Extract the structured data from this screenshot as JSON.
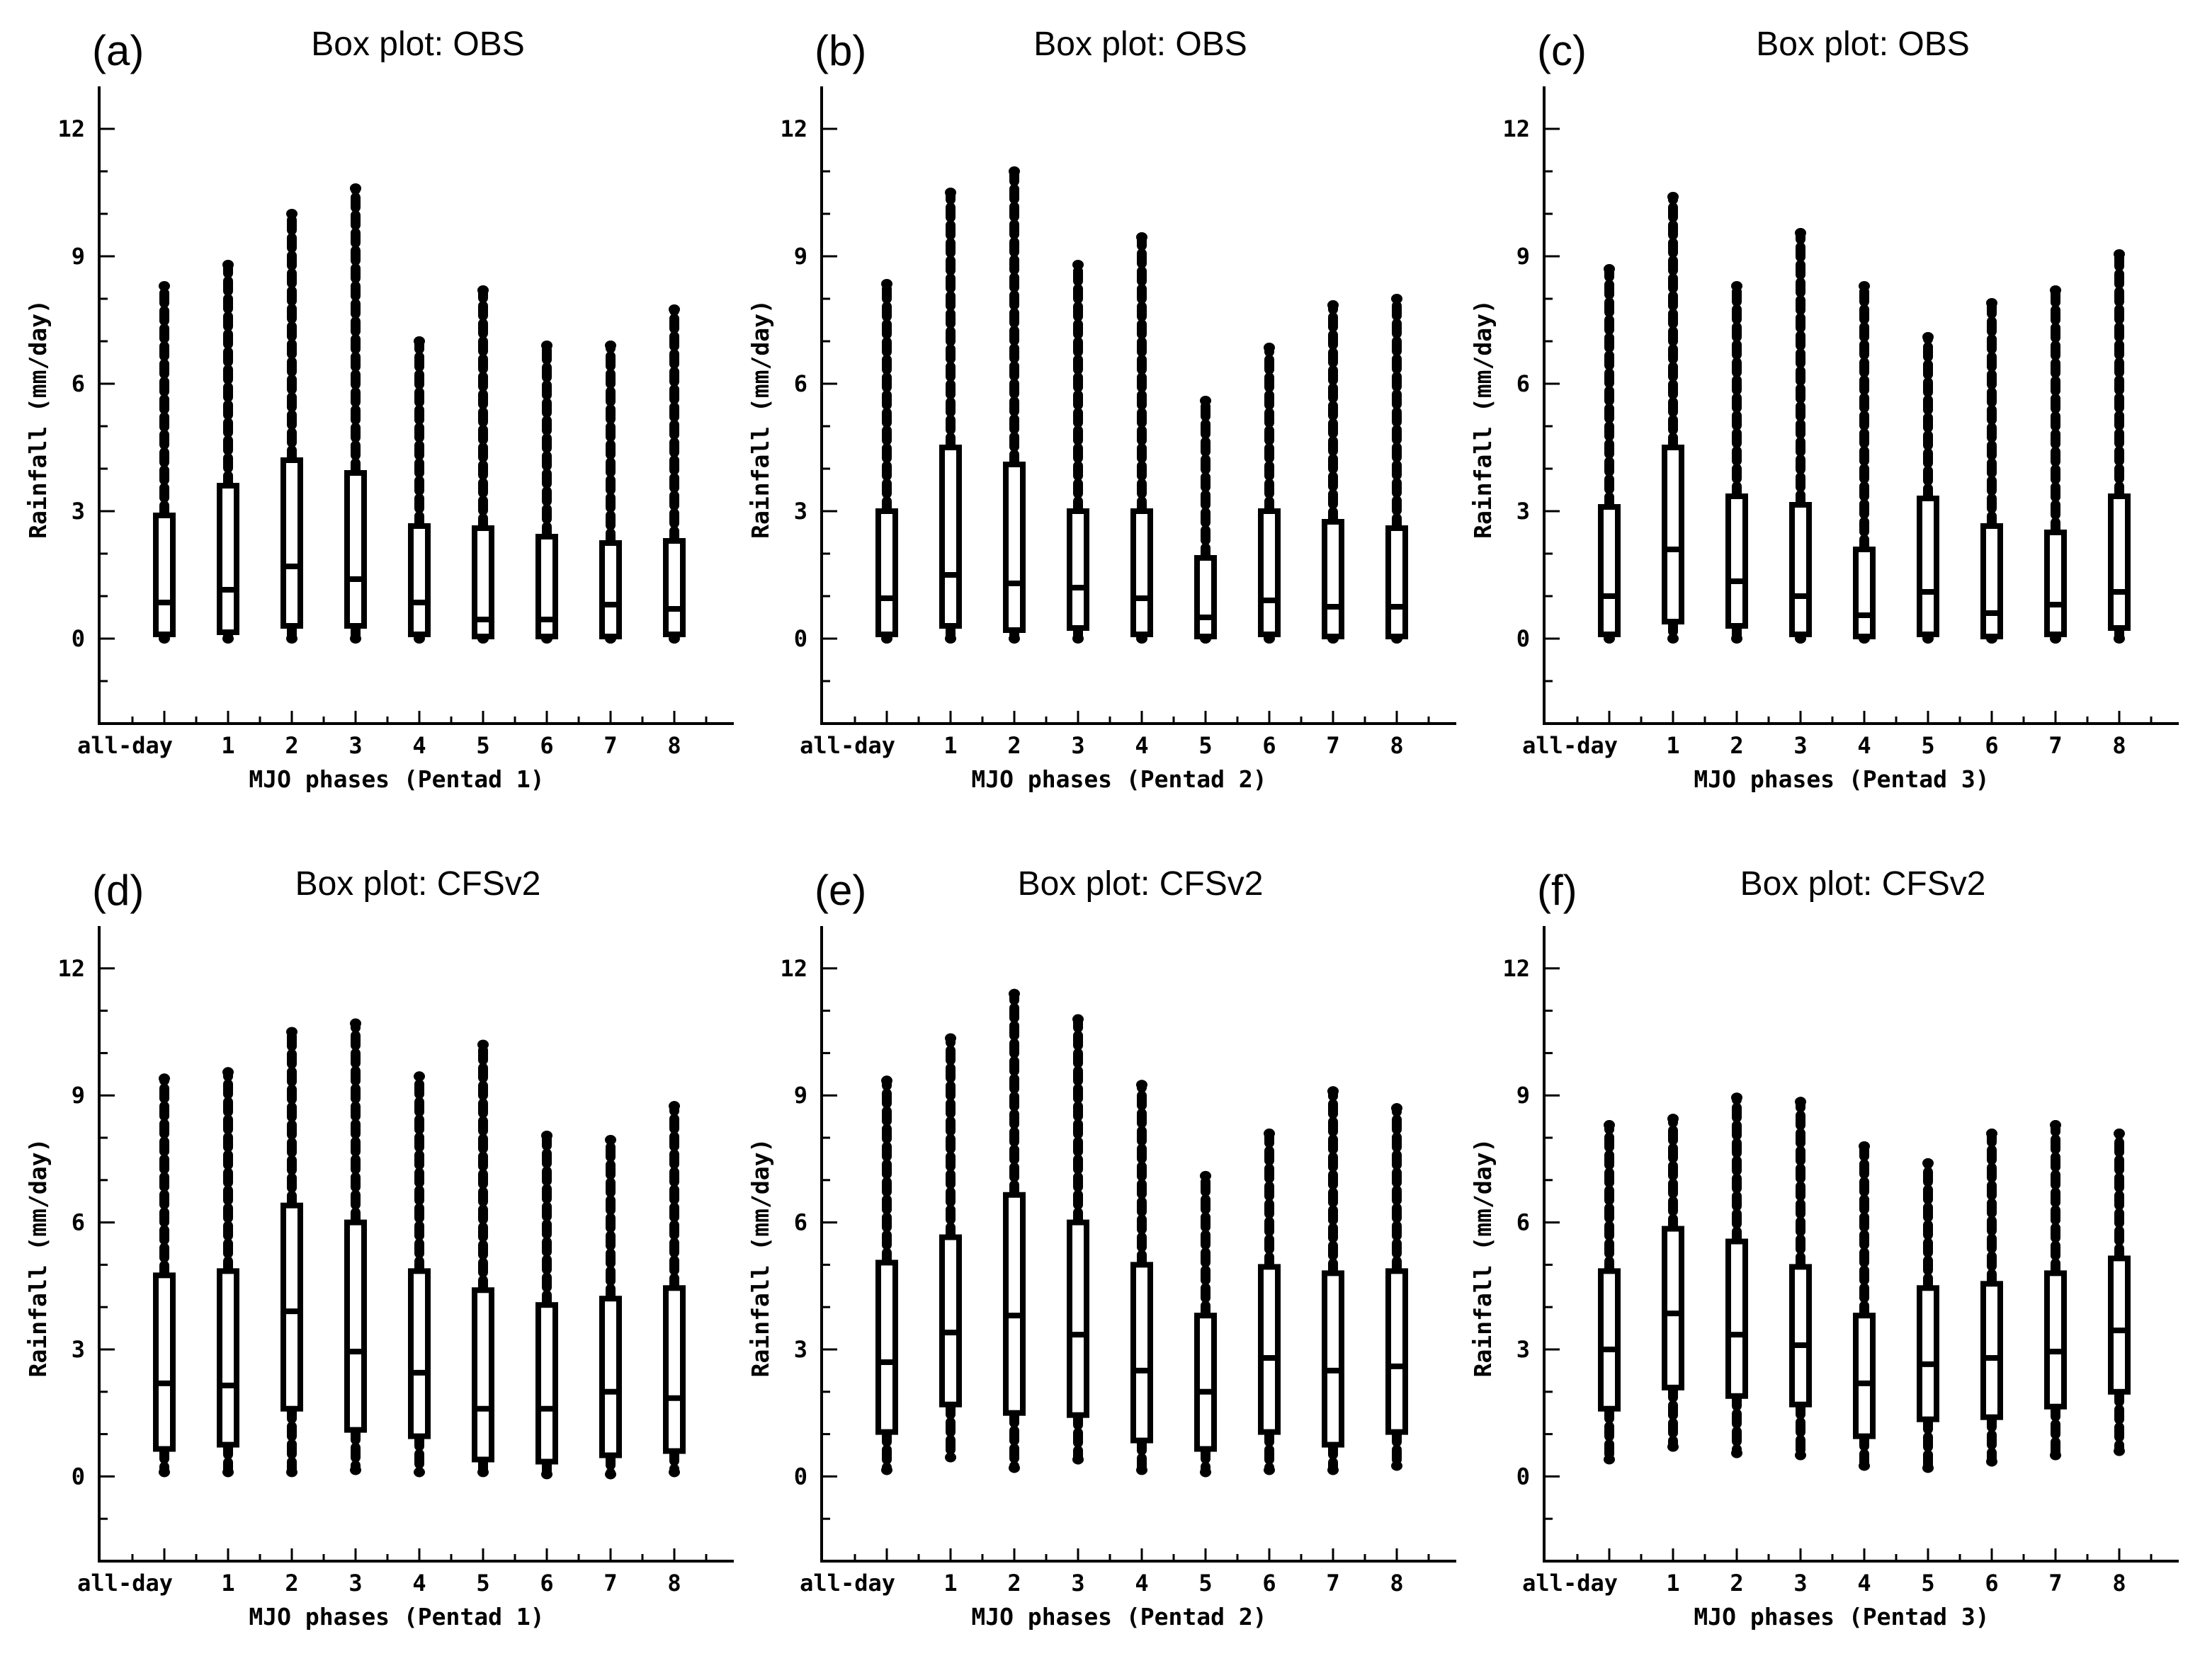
{
  "chart_data": [
    {
      "type": "box",
      "panel": "(a)",
      "title": "Box plot: OBS",
      "xlabel": "MJO phases (Pentad 1)",
      "ylabel": "Rainfall (mm/day)",
      "ylim": [
        -2,
        13
      ],
      "yticks": [
        "0",
        "3",
        "6",
        "9",
        "12"
      ],
      "categories": [
        "all-day",
        "1",
        "2",
        "3",
        "4",
        "5",
        "6",
        "7",
        "8"
      ],
      "boxes": [
        {
          "min": 0.0,
          "q1": 0.1,
          "median": 0.85,
          "q3": 2.9,
          "max": 8.3
        },
        {
          "min": 0.0,
          "q1": 0.15,
          "median": 1.15,
          "q3": 3.6,
          "max": 8.8
        },
        {
          "min": 0.0,
          "q1": 0.3,
          "median": 1.7,
          "q3": 4.2,
          "max": 10.0
        },
        {
          "min": 0.0,
          "q1": 0.3,
          "median": 1.4,
          "q3": 3.9,
          "max": 10.6
        },
        {
          "min": 0.0,
          "q1": 0.1,
          "median": 0.85,
          "q3": 2.65,
          "max": 7.0
        },
        {
          "min": 0.0,
          "q1": 0.05,
          "median": 0.45,
          "q3": 2.6,
          "max": 8.2
        },
        {
          "min": 0.0,
          "q1": 0.05,
          "median": 0.45,
          "q3": 2.4,
          "max": 6.9
        },
        {
          "min": 0.0,
          "q1": 0.05,
          "median": 0.8,
          "q3": 2.25,
          "max": 6.9
        },
        {
          "min": 0.0,
          "q1": 0.1,
          "median": 0.7,
          "q3": 2.3,
          "max": 7.75
        }
      ]
    },
    {
      "type": "box",
      "panel": "(b)",
      "title": "Box plot: OBS",
      "xlabel": "MJO phases (Pentad 2)",
      "ylabel": "Rainfall (mm/day)",
      "ylim": [
        -2,
        13
      ],
      "yticks": [
        "0",
        "3",
        "6",
        "9",
        "12"
      ],
      "categories": [
        "all-day",
        "1",
        "2",
        "3",
        "4",
        "5",
        "6",
        "7",
        "8"
      ],
      "boxes": [
        {
          "min": 0.0,
          "q1": 0.1,
          "median": 0.95,
          "q3": 3.0,
          "max": 8.35
        },
        {
          "min": 0.0,
          "q1": 0.3,
          "median": 1.5,
          "q3": 4.5,
          "max": 10.5
        },
        {
          "min": 0.0,
          "q1": 0.2,
          "median": 1.3,
          "q3": 4.1,
          "max": 11.0
        },
        {
          "min": 0.0,
          "q1": 0.25,
          "median": 1.2,
          "q3": 3.0,
          "max": 8.8
        },
        {
          "min": 0.0,
          "q1": 0.1,
          "median": 0.95,
          "q3": 3.0,
          "max": 9.45
        },
        {
          "min": 0.0,
          "q1": 0.05,
          "median": 0.5,
          "q3": 1.9,
          "max": 5.6
        },
        {
          "min": 0.0,
          "q1": 0.1,
          "median": 0.9,
          "q3": 3.0,
          "max": 6.85
        },
        {
          "min": 0.0,
          "q1": 0.05,
          "median": 0.75,
          "q3": 2.75,
          "max": 7.85
        },
        {
          "min": 0.0,
          "q1": 0.05,
          "median": 0.75,
          "q3": 2.6,
          "max": 8.0
        }
      ]
    },
    {
      "type": "box",
      "panel": "(c)",
      "title": "Box plot: OBS",
      "xlabel": "MJO phases (Pentad 3)",
      "ylabel": "Rainfall (mm/day)",
      "ylim": [
        -2,
        13
      ],
      "yticks": [
        "0",
        "3",
        "6",
        "9",
        "12"
      ],
      "categories": [
        "all-day",
        "1",
        "2",
        "3",
        "4",
        "5",
        "6",
        "7",
        "8"
      ],
      "boxes": [
        {
          "min": 0.0,
          "q1": 0.1,
          "median": 1.0,
          "q3": 3.1,
          "max": 8.7
        },
        {
          "min": 0.0,
          "q1": 0.4,
          "median": 2.1,
          "q3": 4.5,
          "max": 10.4
        },
        {
          "min": 0.0,
          "q1": 0.3,
          "median": 1.35,
          "q3": 3.35,
          "max": 8.3
        },
        {
          "min": 0.0,
          "q1": 0.1,
          "median": 1.0,
          "q3": 3.15,
          "max": 9.55
        },
        {
          "min": 0.0,
          "q1": 0.05,
          "median": 0.55,
          "q3": 2.1,
          "max": 8.3
        },
        {
          "min": 0.0,
          "q1": 0.1,
          "median": 1.1,
          "q3": 3.3,
          "max": 7.1
        },
        {
          "min": 0.0,
          "q1": 0.05,
          "median": 0.6,
          "q3": 2.65,
          "max": 7.9
        },
        {
          "min": 0.0,
          "q1": 0.1,
          "median": 0.8,
          "q3": 2.5,
          "max": 8.2
        },
        {
          "min": 0.0,
          "q1": 0.25,
          "median": 1.1,
          "q3": 3.35,
          "max": 9.05
        }
      ]
    },
    {
      "type": "box",
      "panel": "(d)",
      "title": "Box plot: CFSv2",
      "xlabel": "MJO phases (Pentad 1)",
      "ylabel": "Rainfall (mm/day)",
      "ylim": [
        -2,
        13
      ],
      "yticks": [
        "0",
        "3",
        "6",
        "9",
        "12"
      ],
      "categories": [
        "all-day",
        "1",
        "2",
        "3",
        "4",
        "5",
        "6",
        "7",
        "8"
      ],
      "boxes": [
        {
          "min": 0.1,
          "q1": 0.65,
          "median": 2.2,
          "q3": 4.75,
          "max": 9.4
        },
        {
          "min": 0.1,
          "q1": 0.75,
          "median": 2.15,
          "q3": 4.85,
          "max": 9.55
        },
        {
          "min": 0.1,
          "q1": 1.6,
          "median": 3.9,
          "q3": 6.4,
          "max": 10.5
        },
        {
          "min": 0.15,
          "q1": 1.1,
          "median": 2.95,
          "q3": 6.0,
          "max": 10.7
        },
        {
          "min": 0.1,
          "q1": 0.95,
          "median": 2.45,
          "q3": 4.85,
          "max": 9.45
        },
        {
          "min": 0.1,
          "q1": 0.4,
          "median": 1.6,
          "q3": 4.4,
          "max": 10.2
        },
        {
          "min": 0.05,
          "q1": 0.35,
          "median": 1.6,
          "q3": 4.05,
          "max": 8.05
        },
        {
          "min": 0.05,
          "q1": 0.5,
          "median": 2.0,
          "q3": 4.2,
          "max": 7.95
        },
        {
          "min": 0.1,
          "q1": 0.6,
          "median": 1.85,
          "q3": 4.45,
          "max": 8.75
        }
      ]
    },
    {
      "type": "box",
      "panel": "(e)",
      "title": "Box plot: CFSv2",
      "xlabel": "MJO phases (Pentad 2)",
      "ylabel": "Rainfall (mm/day)",
      "ylim": [
        -2,
        13
      ],
      "yticks": [
        "0",
        "3",
        "6",
        "9",
        "12"
      ],
      "categories": [
        "all-day",
        "1",
        "2",
        "3",
        "4",
        "5",
        "6",
        "7",
        "8"
      ],
      "boxes": [
        {
          "min": 0.15,
          "q1": 1.05,
          "median": 2.7,
          "q3": 5.05,
          "max": 9.35
        },
        {
          "min": 0.45,
          "q1": 1.7,
          "median": 3.4,
          "q3": 5.65,
          "max": 10.35
        },
        {
          "min": 0.2,
          "q1": 1.5,
          "median": 3.8,
          "q3": 6.65,
          "max": 11.4
        },
        {
          "min": 0.4,
          "q1": 1.45,
          "median": 3.35,
          "q3": 6.0,
          "max": 10.8
        },
        {
          "min": 0.15,
          "q1": 0.85,
          "median": 2.5,
          "q3": 5.0,
          "max": 9.25
        },
        {
          "min": 0.1,
          "q1": 0.65,
          "median": 2.0,
          "q3": 3.8,
          "max": 7.1
        },
        {
          "min": 0.15,
          "q1": 1.05,
          "median": 2.8,
          "q3": 4.95,
          "max": 8.1
        },
        {
          "min": 0.15,
          "q1": 0.75,
          "median": 2.5,
          "q3": 4.8,
          "max": 9.1
        },
        {
          "min": 0.25,
          "q1": 1.05,
          "median": 2.6,
          "q3": 4.85,
          "max": 8.7
        }
      ]
    },
    {
      "type": "box",
      "panel": "(f)",
      "title": "Box plot: CFSv2",
      "xlabel": "MJO phases (Pentad 3)",
      "ylabel": "Rainfall (mm/day)",
      "ylim": [
        -2,
        13
      ],
      "yticks": [
        "0",
        "3",
        "6",
        "9",
        "12"
      ],
      "categories": [
        "all-day",
        "1",
        "2",
        "3",
        "4",
        "5",
        "6",
        "7",
        "8"
      ],
      "boxes": [
        {
          "min": 0.4,
          "q1": 1.6,
          "median": 3.0,
          "q3": 4.85,
          "max": 8.3
        },
        {
          "min": 0.7,
          "q1": 2.1,
          "median": 3.85,
          "q3": 5.85,
          "max": 8.45
        },
        {
          "min": 0.55,
          "q1": 1.9,
          "median": 3.35,
          "q3": 5.55,
          "max": 8.95
        },
        {
          "min": 0.5,
          "q1": 1.7,
          "median": 3.1,
          "q3": 4.95,
          "max": 8.85
        },
        {
          "min": 0.25,
          "q1": 0.95,
          "median": 2.2,
          "q3": 3.8,
          "max": 7.8
        },
        {
          "min": 0.2,
          "q1": 1.35,
          "median": 2.65,
          "q3": 4.45,
          "max": 7.4
        },
        {
          "min": 0.35,
          "q1": 1.4,
          "median": 2.8,
          "q3": 4.55,
          "max": 8.1
        },
        {
          "min": 0.5,
          "q1": 1.65,
          "median": 2.95,
          "q3": 4.8,
          "max": 8.3
        },
        {
          "min": 0.6,
          "q1": 2.0,
          "median": 3.45,
          "q3": 5.15,
          "max": 8.1
        }
      ]
    }
  ]
}
